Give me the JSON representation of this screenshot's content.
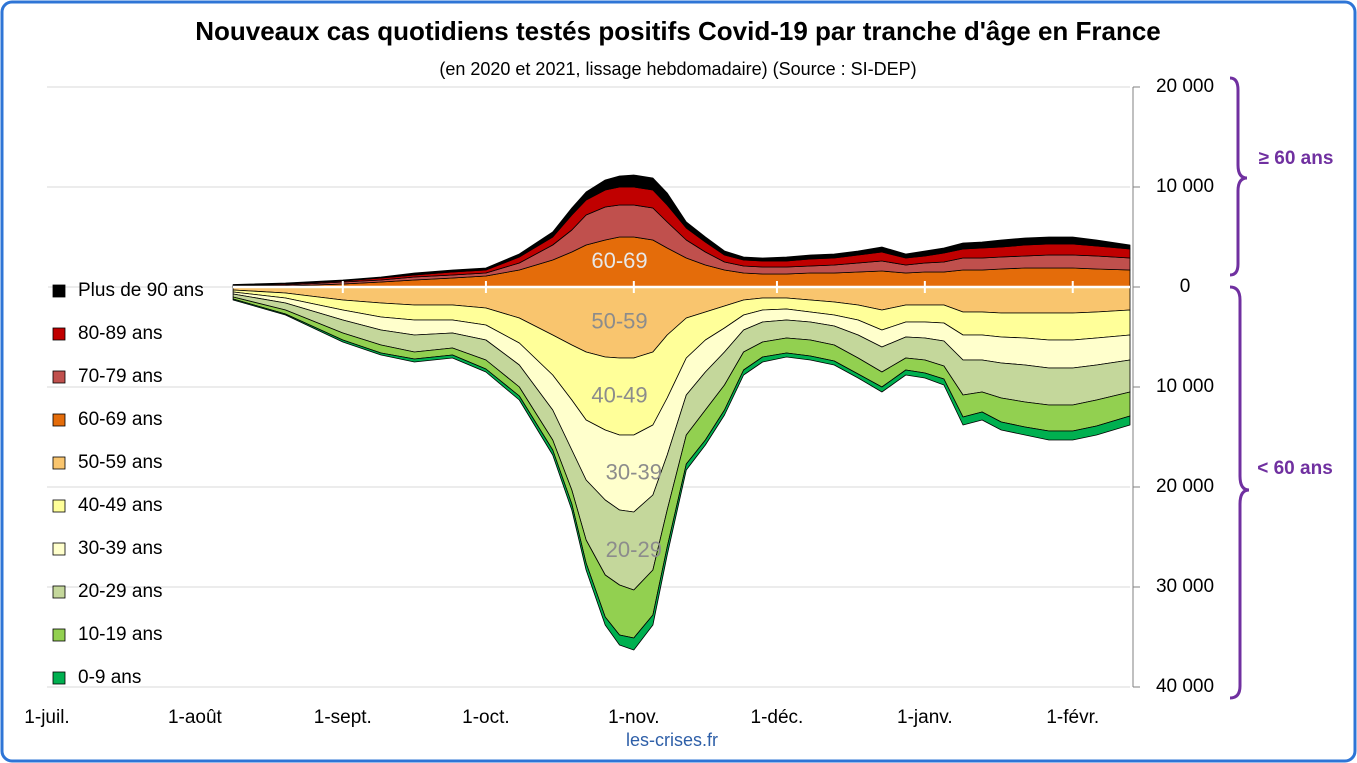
{
  "chart_data": [
    {
      "type": "area",
      "title": "Nouveaux cas quotidiens testés positifs Covid-19 par tranche d'âge en France",
      "subtitle": "(en 2020 et 2021, lissage hebdomadaire) (Source : SI-DEP)",
      "source": "les-crises.fr",
      "annotation": "≥ 60 ans",
      "x": [
        39,
        50,
        62,
        70,
        77,
        85,
        92,
        99,
        106,
        110,
        113,
        117,
        120,
        123,
        127,
        130,
        134,
        138,
        142,
        146,
        150,
        155,
        160,
        165,
        170,
        175,
        180,
        184,
        188,
        192,
        196,
        200,
        205,
        210,
        215,
        220,
        227
      ],
      "xlim": [
        0,
        227
      ],
      "xticks": [
        {
          "value": 0,
          "label": "1-juil."
        },
        {
          "value": 31,
          "label": "1-août"
        },
        {
          "value": 62,
          "label": "1-sept."
        },
        {
          "value": 92,
          "label": "1-oct."
        },
        {
          "value": 123,
          "label": "1-nov."
        },
        {
          "value": 153,
          "label": "1-déc."
        },
        {
          "value": 184,
          "label": "1-janv."
        },
        {
          "value": 215,
          "label": "1-févr."
        }
      ],
      "ylim": [
        0,
        20000
      ],
      "yticks": [
        0,
        {
          "value": 10000,
          "label": "10 000"
        },
        {
          "value": 20000,
          "label": "20 000"
        }
      ],
      "grid": true,
      "series": [
        {
          "name": "Plus de 90 ans",
          "color": "#000000",
          "values": [
            100,
            100,
            100,
            100,
            200,
            200,
            200,
            300,
            500,
            700,
            800,
            1000,
            1100,
            1200,
            1200,
            1200,
            600,
            500,
            400,
            300,
            300,
            400,
            400,
            400,
            400,
            500,
            400,
            500,
            500,
            600,
            600,
            700,
            700,
            700,
            700,
            600,
            400
          ]
        },
        {
          "name": "80-89 ans",
          "color": "#c00000",
          "values": [
            0,
            100,
            100,
            200,
            200,
            300,
            300,
            600,
            800,
            1500,
            1500,
            1700,
            1800,
            1800,
            1800,
            1700,
            1200,
            1000,
            700,
            600,
            600,
            600,
            700,
            700,
            800,
            900,
            700,
            700,
            900,
            900,
            1000,
            1000,
            1100,
            1100,
            1100,
            1000,
            900
          ]
        },
        {
          "name": "70-79 ans",
          "color": "#c0504d",
          "values": [
            100,
            100,
            200,
            200,
            300,
            300,
            300,
            700,
            1500,
            2200,
            3000,
            3300,
            3200,
            3200,
            3200,
            2600,
            1800,
            1300,
            800,
            700,
            700,
            700,
            700,
            800,
            900,
            1000,
            800,
            900,
            1000,
            1200,
            1200,
            1200,
            1200,
            1300,
            1300,
            1300,
            1200
          ]
        },
        {
          "name": "60-69 ans",
          "color": "#e46c0a",
          "area_label": "60-69",
          "values": [
            50,
            100,
            300,
            500,
            700,
            900,
            1100,
            1700,
            2700,
            3500,
            4200,
            4700,
            5000,
            5000,
            4700,
            3900,
            2900,
            2200,
            1700,
            1400,
            1300,
            1300,
            1400,
            1400,
            1500,
            1600,
            1400,
            1500,
            1500,
            1700,
            1700,
            1800,
            1900,
            1900,
            1900,
            1800,
            1700
          ]
        }
      ]
    },
    {
      "type": "area",
      "annotation": "< 60 ans",
      "inverted": true,
      "x": [
        39,
        50,
        62,
        70,
        77,
        85,
        92,
        99,
        106,
        110,
        113,
        117,
        120,
        123,
        127,
        130,
        134,
        138,
        142,
        146,
        150,
        155,
        160,
        165,
        170,
        175,
        180,
        184,
        188,
        192,
        196,
        200,
        205,
        210,
        215,
        220,
        227
      ],
      "xlim": [
        0,
        227
      ],
      "ylim": [
        0,
        40000
      ],
      "yticks": [
        {
          "value": 10000,
          "label": "10 000"
        },
        {
          "value": 20000,
          "label": "20 000"
        },
        {
          "value": 30000,
          "label": "30 000"
        },
        {
          "value": 40000,
          "label": "40 000"
        }
      ],
      "grid": true,
      "series": [
        {
          "name": "50-59 ans",
          "color": "#f9c56e",
          "area_label": "50-59",
          "values": [
            300,
            600,
            1300,
            1600,
            1800,
            1800,
            2100,
            3100,
            4800,
            5800,
            6500,
            7000,
            7100,
            7100,
            6500,
            4800,
            3100,
            2500,
            1900,
            1300,
            1100,
            1100,
            1300,
            1500,
            1800,
            2300,
            1800,
            1800,
            1800,
            2500,
            2500,
            2600,
            2600,
            2600,
            2600,
            2500,
            2300
          ]
        },
        {
          "name": "40-49 ans",
          "color": "#ffff99",
          "area_label": "40-49",
          "values": [
            200,
            500,
            1000,
            1400,
            1500,
            1500,
            1700,
            2500,
            4000,
            5500,
            6800,
            7300,
            7700,
            7700,
            7300,
            6300,
            4000,
            2800,
            2200,
            1500,
            1200,
            1100,
            1200,
            1300,
            1500,
            2000,
            1700,
            1700,
            1800,
            2300,
            2300,
            2400,
            2500,
            2700,
            2700,
            2600,
            2500
          ]
        },
        {
          "name": "30-39 ans",
          "color": "#ffffcc",
          "area_label": "30-39",
          "values": [
            200,
            500,
            1000,
            1300,
            1500,
            1300,
            1500,
            2200,
            3500,
            5000,
            6000,
            7000,
            7500,
            7700,
            7000,
            5700,
            3700,
            3200,
            2400,
            1500,
            1200,
            1100,
            1000,
            1100,
            1500,
            1700,
            1500,
            1600,
            1800,
            2500,
            2500,
            2600,
            2700,
            2800,
            2800,
            2700,
            2500
          ]
        },
        {
          "name": "20-29 ans",
          "color": "#c4d79b",
          "area_label": "20-29",
          "values": [
            300,
            700,
            1300,
            1500,
            1700,
            1500,
            2000,
            2200,
            3000,
            4000,
            6000,
            7500,
            7500,
            7800,
            7500,
            5500,
            4000,
            3800,
            3300,
            2200,
            2000,
            1800,
            1800,
            1900,
            2300,
            2500,
            2100,
            2200,
            2500,
            3500,
            3200,
            3500,
            3700,
            3700,
            3700,
            3500,
            3200
          ]
        },
        {
          "name": "10-19 ans",
          "color": "#92d050",
          "values": [
            200,
            400,
            700,
            800,
            700,
            700,
            900,
            900,
            1000,
            1400,
            2300,
            4200,
            5000,
            4800,
            4500,
            3700,
            2900,
            3000,
            2500,
            1800,
            1500,
            1500,
            1600,
            1600,
            1600,
            1500,
            1200,
            1300,
            1300,
            2200,
            2000,
            2400,
            2500,
            2600,
            2600,
            2600,
            2400
          ]
        },
        {
          "name": "0-9 ans",
          "color": "#00b050",
          "values": [
            100,
            100,
            200,
            200,
            300,
            300,
            300,
            400,
            500,
            600,
            700,
            800,
            1000,
            1200,
            1000,
            800,
            600,
            500,
            500,
            500,
            500,
            400,
            400,
            400,
            400,
            500,
            500,
            500,
            600,
            800,
            800,
            800,
            800,
            900,
            900,
            900,
            900
          ]
        }
      ]
    }
  ]
}
